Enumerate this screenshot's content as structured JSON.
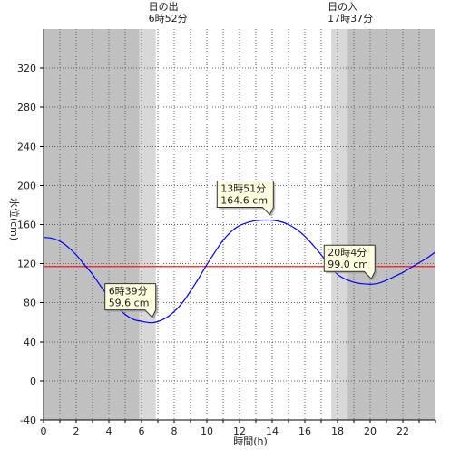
{
  "chart_data": {
    "type": "line",
    "xlabel": "時間(h)",
    "ylabel": "水位(cm)",
    "xlim": [
      0,
      24
    ],
    "ylim": [
      -40,
      360
    ],
    "x_ticks": [
      0,
      2,
      4,
      6,
      8,
      10,
      12,
      14,
      16,
      18,
      20,
      22
    ],
    "y_ticks": [
      -40,
      0,
      40,
      80,
      120,
      160,
      200,
      240,
      280,
      320
    ],
    "grid": true,
    "reference_line": {
      "y": 117,
      "color": "#ff0000"
    },
    "daylight": {
      "sunrise": {
        "label": "日の出",
        "time_label": "6時52分",
        "hour": 6.87
      },
      "sunset": {
        "label": "日の入",
        "time_label": "17時37分",
        "hour": 17.62
      },
      "twilight_hours": 1.0
    },
    "series": [
      {
        "color": "#0000ff",
        "x": [
          0,
          0.5,
          1,
          1.5,
          2,
          2.5,
          3,
          3.5,
          4,
          4.5,
          5,
          5.5,
          6,
          6.65,
          7.2,
          7.8,
          8.5,
          9,
          9.5,
          10,
          10.5,
          11,
          11.5,
          12,
          12.5,
          13,
          13.85,
          14.5,
          15,
          15.5,
          16,
          16.5,
          17,
          17.5,
          18,
          18.5,
          19,
          19.5,
          20.07,
          20.5,
          21,
          21.5,
          22,
          22.5,
          23,
          23.5,
          24
        ],
        "y": [
          147,
          146,
          143,
          137,
          129,
          119,
          109,
          97,
          86,
          76,
          68,
          63,
          61,
          59.6,
          62,
          68,
          80,
          92,
          105,
          119,
          132,
          144,
          153,
          159,
          162,
          164,
          164.6,
          163,
          160,
          155,
          148,
          139,
          129,
          118,
          109,
          104,
          101,
          99.5,
          99,
          100,
          103,
          107,
          111,
          116,
          121,
          126,
          132
        ]
      }
    ],
    "annotations": [
      {
        "time": "6時39分",
        "value": "59.6 cm",
        "x": 6.65,
        "y": 59.6
      },
      {
        "time": "13時51分",
        "value": "164.6 cm",
        "x": 13.85,
        "y": 164.6
      },
      {
        "time": "20時4分",
        "value": "99.0 cm",
        "x": 20.07,
        "y": 99.0
      }
    ],
    "colors": {
      "night": "#c0c0c0",
      "twilight": "#d8d8d8",
      "day": "#ffffff",
      "grid": "#666666"
    }
  }
}
